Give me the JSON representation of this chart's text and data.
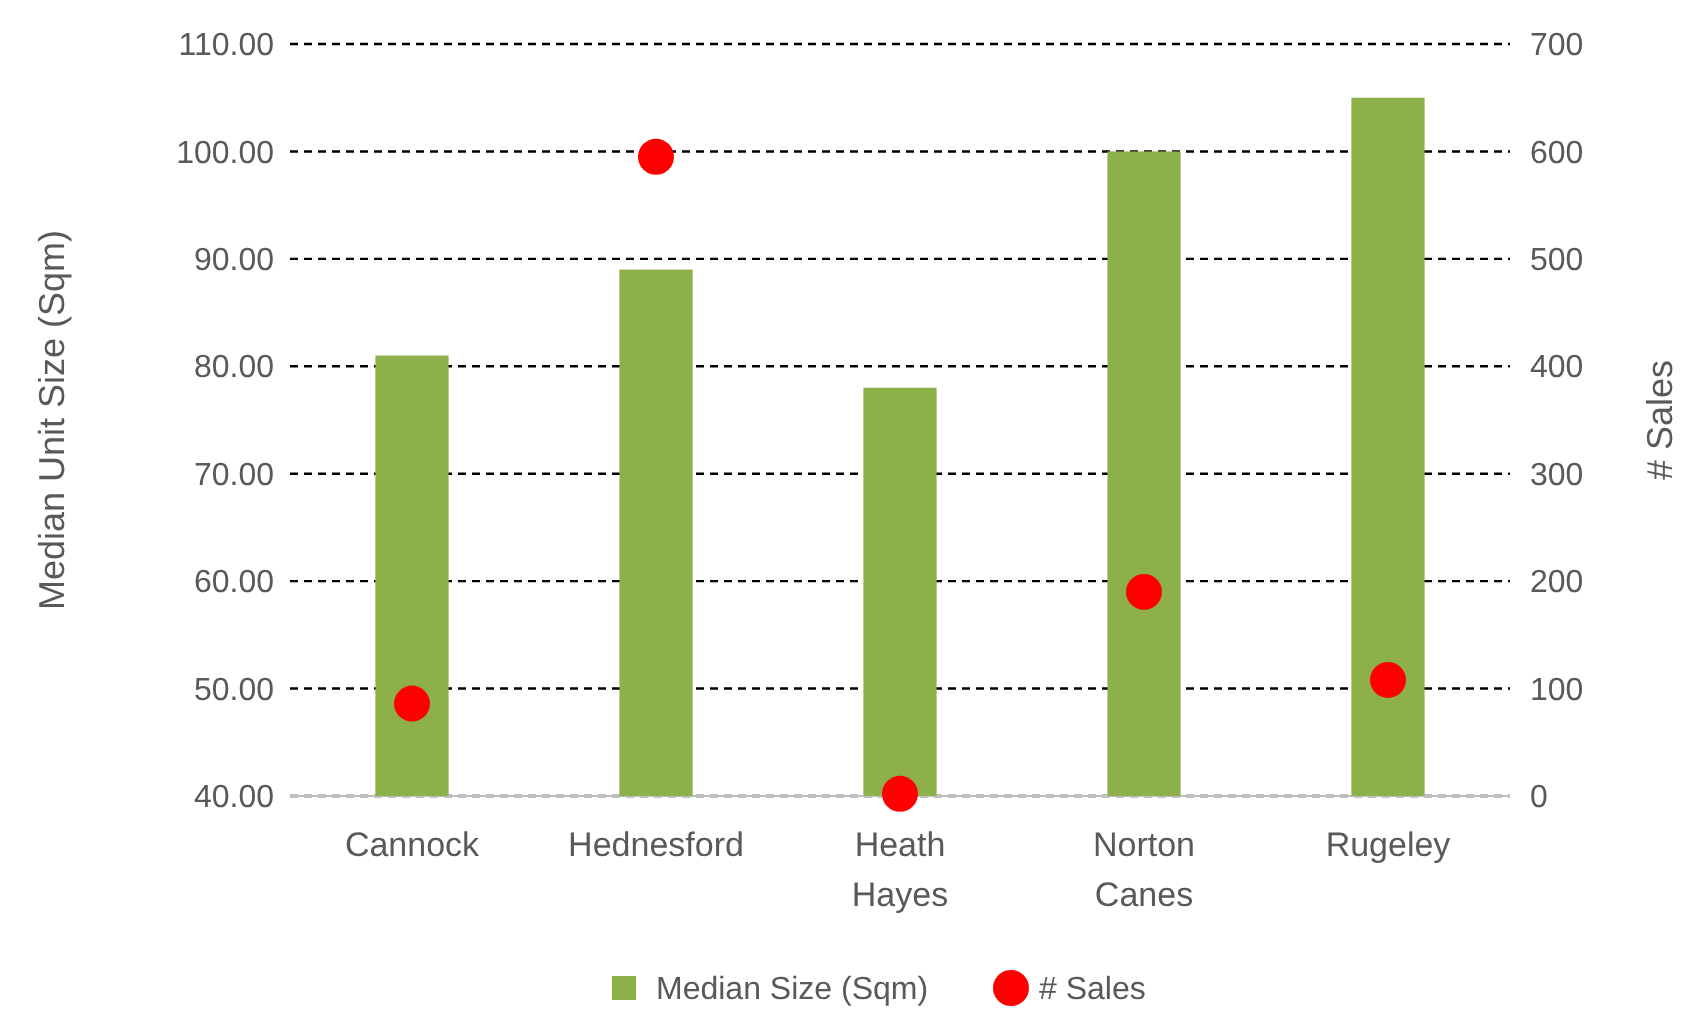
{
  "chart_data": {
    "type": "bar",
    "categories": [
      "Cannock",
      "Hednesford",
      "Heath Hayes",
      "Norton Canes",
      "Rugeley"
    ],
    "ylabel": "Median Unit  Size (Sqm)",
    "y2label": "# Sales",
    "series": [
      {
        "name": "Median Size (Sqm)",
        "color": "#8db04a",
        "values": [
          81,
          89,
          78,
          100,
          105
        ]
      },
      {
        "name": "# Sales",
        "type": "scatter",
        "axis": "y2",
        "color": "#ff0000",
        "values": [
          86,
          595,
          2,
          190,
          108
        ]
      }
    ],
    "ylim": [
      40,
      110
    ],
    "yticks": [
      {
        "value": 40,
        "label": "40.00"
      },
      {
        "value": 50,
        "label": "50.00"
      },
      {
        "value": 60,
        "label": "60.00"
      },
      {
        "value": 70,
        "label": "70.00"
      },
      {
        "value": 80,
        "label": "80.00"
      },
      {
        "value": 90,
        "label": "90.00"
      },
      {
        "value": 100,
        "label": "100.00"
      },
      {
        "value": 110,
        "label": "110.00"
      }
    ],
    "y2lim": [
      0,
      700
    ],
    "y2ticks": [
      0,
      100,
      200,
      300,
      400,
      500,
      600,
      700
    ],
    "grid": "y",
    "legend": "bottom",
    "marker": "circle"
  }
}
